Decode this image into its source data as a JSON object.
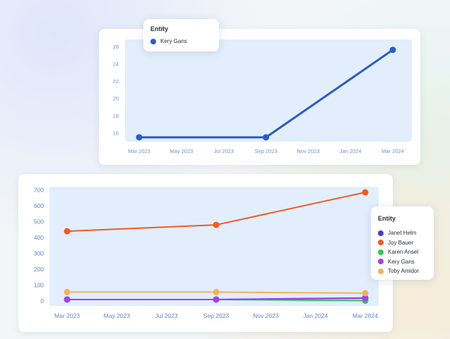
{
  "charts": [
    {
      "chart_data": {
        "type": "line",
        "x_ticks": [
          "Mar 2023",
          "May 2023",
          "Jul 2023",
          "Sep 2023",
          "Nov 2023",
          "Jan 2024",
          "Mar 2024"
        ],
        "y_ticks": [
          16,
          18,
          20,
          22,
          24,
          26
        ],
        "ylim": [
          15,
          26.8
        ],
        "grid": false,
        "legend_title": "Entity",
        "legend_position": "top-left",
        "series": [
          {
            "name": "Kery Gans",
            "color": "#2b5cc4",
            "x": [
              "2023-03",
              "2023-09",
              "2024-03"
            ],
            "y": [
              15.5,
              15.5,
              25.6
            ]
          }
        ]
      }
    },
    {
      "chart_data": {
        "type": "line",
        "x_ticks": [
          "Mar 2023",
          "May 2023",
          "Jul 2023",
          "Sep 2023",
          "Nov 2023",
          "Jan 2024",
          "Mar 2024"
        ],
        "y_ticks": [
          0,
          100,
          200,
          300,
          400,
          500,
          600,
          700
        ],
        "ylim": [
          -30,
          720
        ],
        "grid": false,
        "legend_title": "Entity",
        "legend_position": "right",
        "series": [
          {
            "name": "Janet Helm",
            "color": "#4a3ac9",
            "x": [
              "2023-03",
              "2023-09",
              "2024-03"
            ],
            "y": [
              10,
              10,
              20
            ]
          },
          {
            "name": "Joy Bauer",
            "color": "#f25a22",
            "x": [
              "2023-03",
              "2023-09",
              "2024-03"
            ],
            "y": [
              440,
              480,
              685
            ]
          },
          {
            "name": "Karen Ansel",
            "color": "#2ec65a",
            "x": [
              "2023-03",
              "2023-09",
              "2024-03"
            ],
            "y": [
              10,
              10,
              3
            ]
          },
          {
            "name": "Kery Gans",
            "color": "#a33ff0",
            "x": [
              "2023-03",
              "2023-09",
              "2024-03"
            ],
            "y": [
              10,
              10,
              18
            ]
          },
          {
            "name": "Toby Amidor",
            "color": "#f2b255",
            "x": [
              "2023-03",
              "2023-09",
              "2024-03"
            ],
            "y": [
              57,
              57,
              50
            ]
          }
        ]
      }
    }
  ]
}
